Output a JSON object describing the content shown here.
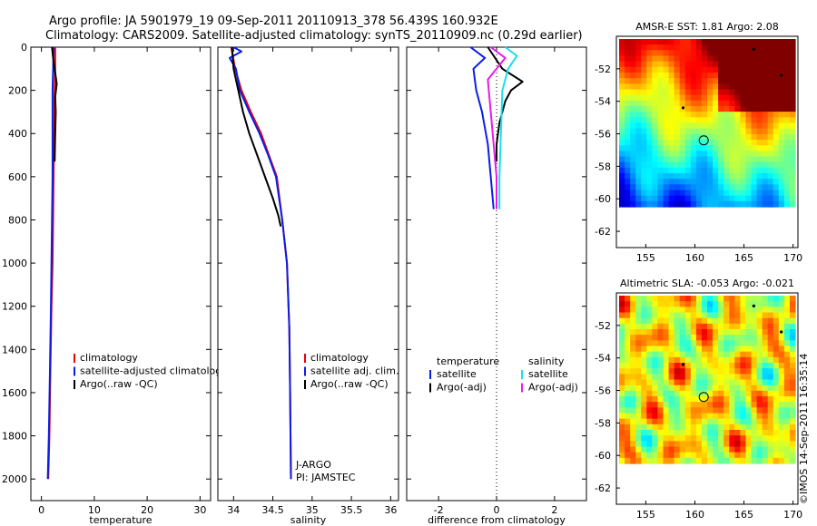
{
  "header": {
    "line1": "Argo profile: JA 5901979_19 09-Sep-2011 20110913_378 56.439S 160.932E",
    "line2": "Climatology: CARS2009. Satellite-adjusted climatology: synTS_20110909.nc (0.29d earlier)"
  },
  "side_label": "©IMOS 14-Sep-2011 16:35:14",
  "colors": {
    "red": "#e8000b",
    "blue": "#0a1ee6",
    "black": "#000000",
    "cyan": "#18e0e8",
    "magenta": "#e81ce8"
  },
  "chart_data": [
    {
      "type": "line",
      "xlabel": "temperature",
      "ylabel": "",
      "xlim": [
        -2,
        32
      ],
      "ylim": [
        2100,
        0
      ],
      "xticks": [
        0,
        10,
        20,
        30
      ],
      "yticks": [
        0,
        200,
        400,
        600,
        800,
        1000,
        1200,
        1400,
        1600,
        1800,
        2000
      ],
      "legend": {
        "position": "lower-right",
        "entries": [
          "climatology",
          "satellite-adjusted climatology",
          "Argo(..raw -QC)"
        ]
      },
      "series": [
        {
          "name": "climatology",
          "color": "red",
          "x": [
            2.6,
            2.6,
            2.5,
            2.4,
            2.3,
            2.2,
            2.1,
            1.9,
            1.7,
            1.5,
            1.3
          ],
          "y": [
            0,
            100,
            200,
            400,
            600,
            800,
            1000,
            1200,
            1500,
            1800,
            2000
          ]
        },
        {
          "name": "satellite-adjusted climatology",
          "color": "blue",
          "x": [
            2.3,
            2.2,
            2.1,
            2.1,
            2.1,
            2.0,
            1.9,
            1.8,
            1.6,
            1.4,
            1.2
          ],
          "y": [
            0,
            100,
            200,
            400,
            600,
            800,
            1000,
            1200,
            1500,
            1800,
            2000
          ]
        },
        {
          "name": "Argo(..raw -QC)",
          "color": "black",
          "x": [
            2.0,
            2.2,
            2.5,
            2.9,
            2.6,
            2.7,
            2.6,
            2.5
          ],
          "y": [
            0,
            50,
            100,
            170,
            230,
            300,
            400,
            530
          ]
        }
      ]
    },
    {
      "type": "line",
      "xlabel": "salinity",
      "ylabel": "",
      "xlim": [
        33.8,
        36.1
      ],
      "ylim": [
        2100,
        0
      ],
      "xticks": [
        34,
        34.5,
        35,
        35.5,
        36
      ],
      "legend": {
        "position": "lower-right",
        "entries": [
          "climatology",
          "satellite adj. clim.",
          "Argo(..raw -QC)"
        ]
      },
      "annotations": [
        "J-ARGO",
        "PI: JAMSTEC"
      ],
      "series": [
        {
          "name": "climatology",
          "color": "red",
          "x": [
            33.97,
            34.02,
            34.1,
            34.22,
            34.35,
            34.45,
            34.55,
            34.62,
            34.68,
            34.71,
            34.72,
            34.73
          ],
          "y": [
            0,
            100,
            200,
            300,
            400,
            500,
            600,
            800,
            1000,
            1300,
            1600,
            2000
          ]
        },
        {
          "name": "satellite adj. clim.",
          "color": "blue",
          "x": [
            34.0,
            34.1,
            33.95,
            34.03,
            34.08,
            34.2,
            34.33,
            34.44,
            34.54,
            34.62,
            34.68,
            34.71,
            34.72,
            34.73
          ],
          "y": [
            0,
            20,
            50,
            100,
            200,
            300,
            400,
            500,
            600,
            800,
            1000,
            1300,
            1600,
            2000
          ]
        },
        {
          "name": "Argo(..raw -QC)",
          "color": "black",
          "x": [
            33.98,
            34.0,
            34.06,
            34.12,
            34.2,
            34.3,
            34.4,
            34.5,
            34.57,
            34.6
          ],
          "y": [
            0,
            100,
            200,
            300,
            400,
            500,
            600,
            700,
            780,
            830
          ]
        }
      ]
    },
    {
      "type": "line",
      "xlabel": "difference from climatology",
      "ylabel": "",
      "xlim": [
        -3.1,
        3.1
      ],
      "ylim": [
        2100,
        0
      ],
      "xticks": [
        -2,
        0,
        2
      ],
      "legend": {
        "position": "lower-right",
        "entries": [
          "temperature",
          "satellite",
          "Argo(-adj)",
          "salinity",
          "satellite",
          "Argo(-adj)"
        ]
      },
      "series": [
        {
          "name": "temperature satellite",
          "color": "blue",
          "x": [
            -0.9,
            -0.4,
            -0.8,
            -0.7,
            -0.5,
            -0.3,
            -0.2,
            -0.1
          ],
          "y": [
            0,
            50,
            100,
            200,
            300,
            450,
            600,
            750
          ]
        },
        {
          "name": "temperature Argo(-adj)",
          "color": "black",
          "x": [
            -0.3,
            0.2,
            0.9,
            0.5,
            0.3,
            0.1,
            0.0,
            0.0
          ],
          "y": [
            0,
            100,
            160,
            200,
            250,
            350,
            450,
            530
          ]
        },
        {
          "name": "salinity satellite",
          "color": "cyan",
          "x": [
            0.3,
            0.7,
            0.4,
            0.2,
            0.15,
            0.1,
            0.1
          ],
          "y": [
            0,
            40,
            100,
            200,
            400,
            600,
            750
          ]
        },
        {
          "name": "salinity Argo(-adj)",
          "color": "magenta",
          "x": [
            -0.2,
            0.3,
            -0.3,
            -0.2,
            -0.1,
            0.0,
            0.0
          ],
          "y": [
            0,
            50,
            150,
            300,
            450,
            600,
            750
          ]
        }
      ]
    },
    {
      "type": "heatmap",
      "title": "AMSR-E SST: 1.81 Argo: 2.08",
      "xlim": [
        152,
        170.5
      ],
      "ylim": [
        -63,
        -50
      ],
      "xticks": [
        155,
        160,
        165,
        170
      ],
      "yticks": [
        -62,
        -60,
        -58,
        -56,
        -54,
        -52
      ],
      "marker": {
        "lon": 160.9,
        "lat": -56.4
      }
    },
    {
      "type": "heatmap",
      "title": "Altimetric SLA: -0.053 Argo: -0.021",
      "xlim": [
        152,
        170.5
      ],
      "ylim": [
        -63,
        -50
      ],
      "xticks": [
        155,
        160,
        165,
        170
      ],
      "yticks": [
        -62,
        -60,
        -58,
        -56,
        -54,
        -52
      ],
      "marker": {
        "lon": 160.9,
        "lat": -56.4
      }
    }
  ]
}
